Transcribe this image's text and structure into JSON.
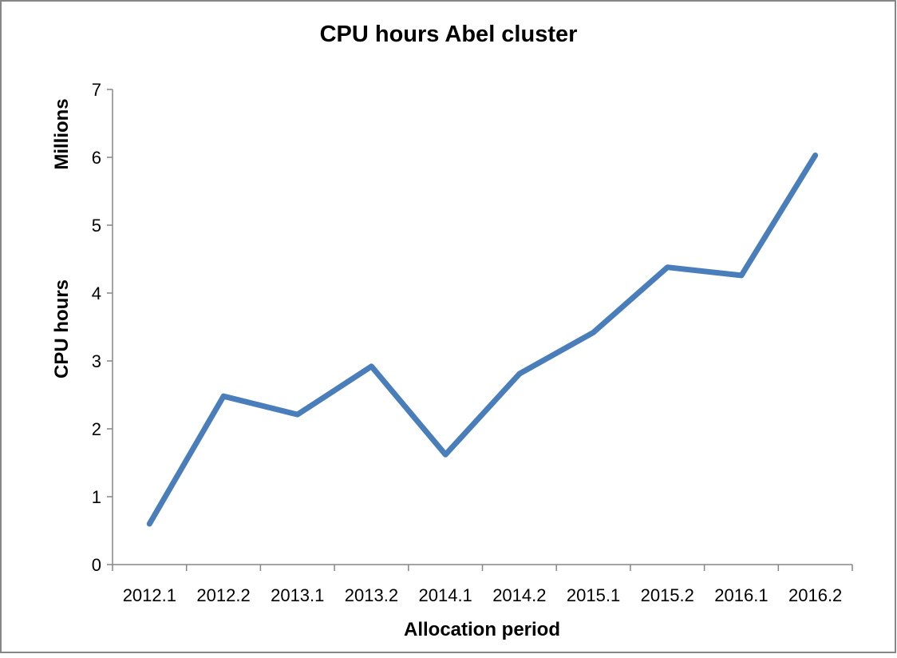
{
  "chart_data": {
    "type": "line",
    "title": "CPU hours Abel cluster",
    "xlabel": "Allocation period",
    "ylabel": "CPU hours",
    "ylabel_unit": "Millions",
    "categories": [
      "2012.1",
      "2012.2",
      "2013.1",
      "2013.2",
      "2014.1",
      "2014.2",
      "2015.1",
      "2015.2",
      "2016.1",
      "2016.2"
    ],
    "series": [
      {
        "values": [
          0.6,
          2.48,
          2.21,
          2.92,
          1.62,
          2.81,
          3.42,
          4.38,
          4.26,
          6.03
        ]
      }
    ],
    "ylim": [
      0,
      7
    ],
    "yticks": [
      "0",
      "1",
      "2",
      "3",
      "4",
      "5",
      "6",
      "7"
    ],
    "grid": false,
    "legend": "none",
    "line_color": "#4a7ebb",
    "axis_color": "#868686",
    "border_color": "#868686"
  }
}
